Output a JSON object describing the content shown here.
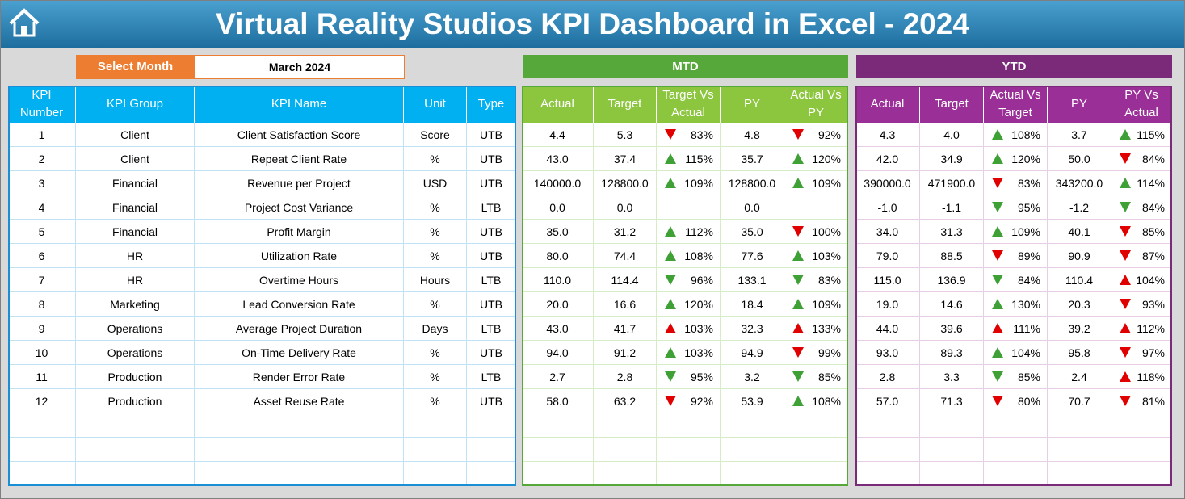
{
  "header": {
    "title": "Virtual Reality Studios KPI Dashboard in Excel - 2024"
  },
  "filter": {
    "label": "Select Month",
    "value": "March 2024"
  },
  "kpi": {
    "columns": [
      "KPI Number",
      "KPI Group",
      "KPI Name",
      "Unit",
      "Type"
    ],
    "rows": [
      [
        "1",
        "Client",
        "Client Satisfaction Score",
        "Score",
        "UTB"
      ],
      [
        "2",
        "Client",
        "Repeat Client Rate",
        "%",
        "UTB"
      ],
      [
        "3",
        "Financial",
        "Revenue per Project",
        "USD",
        "UTB"
      ],
      [
        "4",
        "Financial",
        "Project Cost Variance",
        "%",
        "LTB"
      ],
      [
        "5",
        "Financial",
        "Profit Margin",
        "%",
        "UTB"
      ],
      [
        "6",
        "HR",
        "Utilization Rate",
        "%",
        "UTB"
      ],
      [
        "7",
        "HR",
        "Overtime Hours",
        "Hours",
        "LTB"
      ],
      [
        "8",
        "Marketing",
        "Lead Conversion Rate",
        "%",
        "UTB"
      ],
      [
        "9",
        "Operations",
        "Average Project Duration",
        "Days",
        "LTB"
      ],
      [
        "10",
        "Operations",
        "On-Time Delivery Rate",
        "%",
        "UTB"
      ],
      [
        "11",
        "Production",
        "Render Error Rate",
        "%",
        "LTB"
      ],
      [
        "12",
        "Production",
        "Asset Reuse Rate",
        "%",
        "UTB"
      ]
    ]
  },
  "mtd": {
    "title": "MTD",
    "columns": [
      "Actual",
      "Target",
      "Target Vs Actual",
      "PY",
      "Actual Vs PY"
    ],
    "rows": [
      [
        "4.4",
        "5.3",
        "83%",
        "4.8",
        "92%"
      ],
      [
        "43.0",
        "37.4",
        "115%",
        "35.7",
        "120%"
      ],
      [
        "140000.0",
        "128800.0",
        "109%",
        "128800.0",
        "109%"
      ],
      [
        "0.0",
        "0.0",
        null,
        "0.0",
        null
      ],
      [
        "35.0",
        "31.2",
        "112%",
        "35.0",
        "100%"
      ],
      [
        "80.0",
        "74.4",
        "108%",
        "77.6",
        "103%"
      ],
      [
        "110.0",
        "114.4",
        "96%",
        "133.1",
        "83%"
      ],
      [
        "20.0",
        "16.6",
        "120%",
        "18.4",
        "109%"
      ],
      [
        "43.0",
        "41.7",
        "103%",
        "32.3",
        "133%"
      ],
      [
        "94.0",
        "91.2",
        "103%",
        "94.9",
        "99%"
      ],
      [
        "2.7",
        "2.8",
        "95%",
        "3.2",
        "85%"
      ],
      [
        "58.0",
        "63.2",
        "92%",
        "53.9",
        "108%"
      ]
    ]
  },
  "ytd": {
    "title": "YTD",
    "columns": [
      "Actual",
      "Target",
      "Actual Vs Target",
      "PY",
      "PY Vs Actual"
    ],
    "rows": [
      [
        "4.3",
        "4.0",
        "108%",
        "3.7",
        "115%"
      ],
      [
        "42.0",
        "34.9",
        "120%",
        "50.0",
        "84%"
      ],
      [
        "390000.0",
        "471900.0",
        "83%",
        "343200.0",
        "114%"
      ],
      [
        "-1.0",
        "-1.1",
        "95%",
        "-1.2",
        "84%"
      ],
      [
        "34.0",
        "31.3",
        "109%",
        "40.1",
        "85%"
      ],
      [
        "79.0",
        "88.5",
        "89%",
        "90.9",
        "87%"
      ],
      [
        "115.0",
        "136.9",
        "84%",
        "110.4",
        "104%"
      ],
      [
        "19.0",
        "14.6",
        "130%",
        "20.3",
        "93%"
      ],
      [
        "44.0",
        "39.6",
        "111%",
        "39.2",
        "112%"
      ],
      [
        "93.0",
        "89.3",
        "104%",
        "95.8",
        "97%"
      ],
      [
        "2.8",
        "3.3",
        "85%",
        "2.4",
        "118%"
      ],
      [
        "57.0",
        "71.3",
        "80%",
        "70.7",
        "81%"
      ]
    ]
  }
}
